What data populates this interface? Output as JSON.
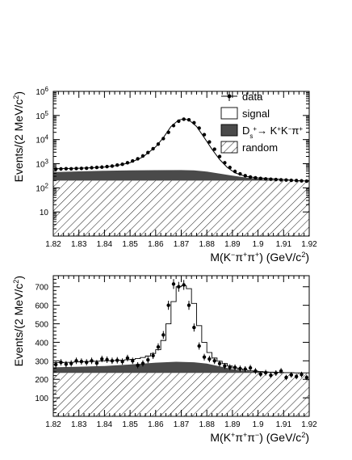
{
  "chart_data": [
    {
      "type": "histogram",
      "panel": "top",
      "xlabel_parts": [
        "M(K",
        "−",
        "π",
        "+",
        "π",
        "+",
        ") (GeV/c",
        "2",
        ")"
      ],
      "ylabel_parts": [
        "Events/(2 MeV/c",
        "2",
        ")"
      ],
      "xlim": [
        1.82,
        1.92
      ],
      "ylim": [
        1,
        1000000
      ],
      "yscale": "log",
      "x_ticks": [
        "1.82",
        "1.83",
        "1.84",
        "1.85",
        "1.86",
        "1.87",
        "1.88",
        "1.89",
        "1.9",
        "1.91",
        "1.92"
      ],
      "y_ticks": [
        {
          "value": 10,
          "base": "10",
          "exp": ""
        },
        {
          "value": 100,
          "base": "10",
          "exp": "2"
        },
        {
          "value": 1000,
          "base": "10",
          "exp": "3"
        },
        {
          "value": 10000,
          "base": "10",
          "exp": "4"
        },
        {
          "value": 100000,
          "base": "10",
          "exp": "5"
        },
        {
          "value": 1000000,
          "base": "10",
          "exp": "6"
        }
      ],
      "legend": {
        "placement": "top-right",
        "entries": [
          {
            "key": "data",
            "label": "data",
            "symbol": "marker"
          },
          {
            "key": "signal",
            "label": "signal",
            "symbol": "open-box"
          },
          {
            "key": "ds",
            "label_parts": [
              "D",
              "s",
              "+",
              "→ K",
              "+",
              "K",
              "−",
              "π",
              "+"
            ],
            "symbol": "dark-box"
          },
          {
            "key": "random",
            "label": "random",
            "symbol": "hatched-box"
          }
        ]
      },
      "random_level": 200,
      "ds_peaking": [
        [
          1.82,
          450
        ],
        [
          1.83,
          480
        ],
        [
          1.84,
          510
        ],
        [
          1.85,
          530
        ],
        [
          1.86,
          540
        ],
        [
          1.87,
          545
        ],
        [
          1.875,
          530
        ],
        [
          1.88,
          470
        ],
        [
          1.885,
          390
        ],
        [
          1.89,
          320
        ],
        [
          1.895,
          270
        ],
        [
          1.9,
          240
        ],
        [
          1.905,
          220
        ],
        [
          1.91,
          205
        ],
        [
          1.92,
          200
        ]
      ],
      "total_model": [
        [
          1.82,
          620
        ],
        [
          1.825,
          630
        ],
        [
          1.83,
          650
        ],
        [
          1.835,
          680
        ],
        [
          1.84,
          730
        ],
        [
          1.845,
          850
        ],
        [
          1.85,
          1100
        ],
        [
          1.855,
          1900
        ],
        [
          1.86,
          5000
        ],
        [
          1.863,
          12000
        ],
        [
          1.866,
          35000
        ],
        [
          1.869,
          65000
        ],
        [
          1.871,
          72000
        ],
        [
          1.873,
          65000
        ],
        [
          1.876,
          35000
        ],
        [
          1.879,
          12000
        ],
        [
          1.882,
          4000
        ],
        [
          1.885,
          1500
        ],
        [
          1.888,
          700
        ],
        [
          1.891,
          420
        ],
        [
          1.895,
          300
        ],
        [
          1.9,
          260
        ],
        [
          1.905,
          240
        ],
        [
          1.91,
          220
        ],
        [
          1.915,
          200
        ],
        [
          1.92,
          190
        ]
      ],
      "data_points": [
        [
          1.821,
          600
        ],
        [
          1.823,
          610
        ],
        [
          1.825,
          620
        ],
        [
          1.827,
          615
        ],
        [
          1.829,
          630
        ],
        [
          1.831,
          640
        ],
        [
          1.833,
          650
        ],
        [
          1.835,
          680
        ],
        [
          1.837,
          700
        ],
        [
          1.839,
          720
        ],
        [
          1.841,
          760
        ],
        [
          1.843,
          800
        ],
        [
          1.845,
          880
        ],
        [
          1.847,
          950
        ],
        [
          1.849,
          1100
        ],
        [
          1.851,
          1300
        ],
        [
          1.853,
          1600
        ],
        [
          1.855,
          2100
        ],
        [
          1.857,
          2900
        ],
        [
          1.859,
          4200
        ],
        [
          1.861,
          6500
        ],
        [
          1.863,
          11000
        ],
        [
          1.865,
          20000
        ],
        [
          1.867,
          38000
        ],
        [
          1.869,
          58000
        ],
        [
          1.871,
          70000
        ],
        [
          1.873,
          66000
        ],
        [
          1.875,
          50000
        ],
        [
          1.877,
          30000
        ],
        [
          1.879,
          16000
        ],
        [
          1.881,
          8000
        ],
        [
          1.883,
          4000
        ],
        [
          1.885,
          2000
        ],
        [
          1.887,
          1100
        ],
        [
          1.889,
          700
        ],
        [
          1.891,
          480
        ],
        [
          1.893,
          380
        ],
        [
          1.895,
          320
        ],
        [
          1.897,
          280
        ],
        [
          1.899,
          260
        ],
        [
          1.901,
          245
        ],
        [
          1.903,
          235
        ],
        [
          1.905,
          228
        ],
        [
          1.907,
          220
        ],
        [
          1.909,
          215
        ],
        [
          1.911,
          210
        ],
        [
          1.913,
          205
        ],
        [
          1.915,
          200
        ],
        [
          1.917,
          195
        ],
        [
          1.919,
          190
        ]
      ]
    },
    {
      "type": "histogram",
      "panel": "bottom",
      "xlabel_parts": [
        "M(K",
        "+",
        "π",
        "+",
        "π",
        "−",
        ") (GeV/c",
        "2",
        ")"
      ],
      "ylabel_parts": [
        "Events/(2 MeV/c",
        "2",
        ")"
      ],
      "xlim": [
        1.82,
        1.92
      ],
      "ylim": [
        0,
        760
      ],
      "yscale": "linear",
      "x_ticks": [
        "1.82",
        "1.83",
        "1.84",
        "1.85",
        "1.86",
        "1.87",
        "1.88",
        "1.89",
        "1.9",
        "1.91",
        "1.92"
      ],
      "y_ticks": [
        "100",
        "200",
        "300",
        "400",
        "500",
        "600",
        "700"
      ],
      "random_level": 235,
      "ds_peaking": [
        [
          1.82,
          265
        ],
        [
          1.83,
          268
        ],
        [
          1.84,
          272
        ],
        [
          1.85,
          280
        ],
        [
          1.86,
          290
        ],
        [
          1.868,
          295
        ],
        [
          1.875,
          292
        ],
        [
          1.88,
          285
        ],
        [
          1.885,
          270
        ],
        [
          1.89,
          255
        ],
        [
          1.895,
          245
        ],
        [
          1.9,
          240
        ],
        [
          1.91,
          237
        ],
        [
          1.92,
          235
        ]
      ],
      "signal_bins": [
        [
          1.82,
          290
        ],
        [
          1.822,
          290
        ],
        [
          1.824,
          292
        ],
        [
          1.826,
          292
        ],
        [
          1.828,
          294
        ],
        [
          1.83,
          295
        ],
        [
          1.832,
          296
        ],
        [
          1.834,
          297
        ],
        [
          1.836,
          298
        ],
        [
          1.838,
          299
        ],
        [
          1.84,
          300
        ],
        [
          1.842,
          301
        ],
        [
          1.844,
          302
        ],
        [
          1.846,
          304
        ],
        [
          1.848,
          306
        ],
        [
          1.85,
          308
        ],
        [
          1.852,
          312
        ],
        [
          1.854,
          318
        ],
        [
          1.856,
          326
        ],
        [
          1.858,
          340
        ],
        [
          1.86,
          360
        ],
        [
          1.862,
          410
        ],
        [
          1.864,
          500
        ],
        [
          1.866,
          620
        ],
        [
          1.868,
          700
        ],
        [
          1.87,
          705
        ],
        [
          1.872,
          690
        ],
        [
          1.874,
          610
        ],
        [
          1.876,
          490
        ],
        [
          1.878,
          400
        ],
        [
          1.88,
          345
        ],
        [
          1.882,
          315
        ],
        [
          1.884,
          298
        ],
        [
          1.886,
          285
        ],
        [
          1.888,
          272
        ],
        [
          1.89,
          262
        ],
        [
          1.892,
          255
        ],
        [
          1.894,
          250
        ],
        [
          1.896,
          246
        ],
        [
          1.898,
          244
        ],
        [
          1.9,
          242
        ],
        [
          1.902,
          240
        ],
        [
          1.904,
          239
        ],
        [
          1.906,
          238
        ],
        [
          1.908,
          237
        ],
        [
          1.91,
          236
        ],
        [
          1.912,
          236
        ],
        [
          1.914,
          235
        ],
        [
          1.916,
          235
        ],
        [
          1.918,
          235
        ]
      ],
      "data_points": [
        [
          1.821,
          280
        ],
        [
          1.823,
          292
        ],
        [
          1.825,
          282
        ],
        [
          1.827,
          286
        ],
        [
          1.829,
          300
        ],
        [
          1.831,
          296
        ],
        [
          1.833,
          292
        ],
        [
          1.835,
          300
        ],
        [
          1.837,
          288
        ],
        [
          1.839,
          310
        ],
        [
          1.841,
          306
        ],
        [
          1.843,
          300
        ],
        [
          1.845,
          303
        ],
        [
          1.847,
          296
        ],
        [
          1.849,
          315
        ],
        [
          1.851,
          300
        ],
        [
          1.853,
          276
        ],
        [
          1.855,
          286
        ],
        [
          1.857,
          305
        ],
        [
          1.859,
          328
        ],
        [
          1.861,
          375
        ],
        [
          1.863,
          440
        ],
        [
          1.865,
          600
        ],
        [
          1.867,
          715
        ],
        [
          1.869,
          700
        ],
        [
          1.871,
          710
        ],
        [
          1.873,
          600
        ],
        [
          1.875,
          480
        ],
        [
          1.877,
          380
        ],
        [
          1.879,
          320
        ],
        [
          1.881,
          310
        ],
        [
          1.883,
          300
        ],
        [
          1.885,
          285
        ],
        [
          1.887,
          272
        ],
        [
          1.889,
          265
        ],
        [
          1.891,
          264
        ],
        [
          1.893,
          258
        ],
        [
          1.895,
          255
        ],
        [
          1.897,
          262
        ],
        [
          1.899,
          245
        ],
        [
          1.901,
          228
        ],
        [
          1.903,
          236
        ],
        [
          1.905,
          222
        ],
        [
          1.907,
          234
        ],
        [
          1.909,
          245
        ],
        [
          1.911,
          210
        ],
        [
          1.913,
          224
        ],
        [
          1.915,
          215
        ],
        [
          1.917,
          226
        ],
        [
          1.919,
          210
        ]
      ]
    }
  ]
}
